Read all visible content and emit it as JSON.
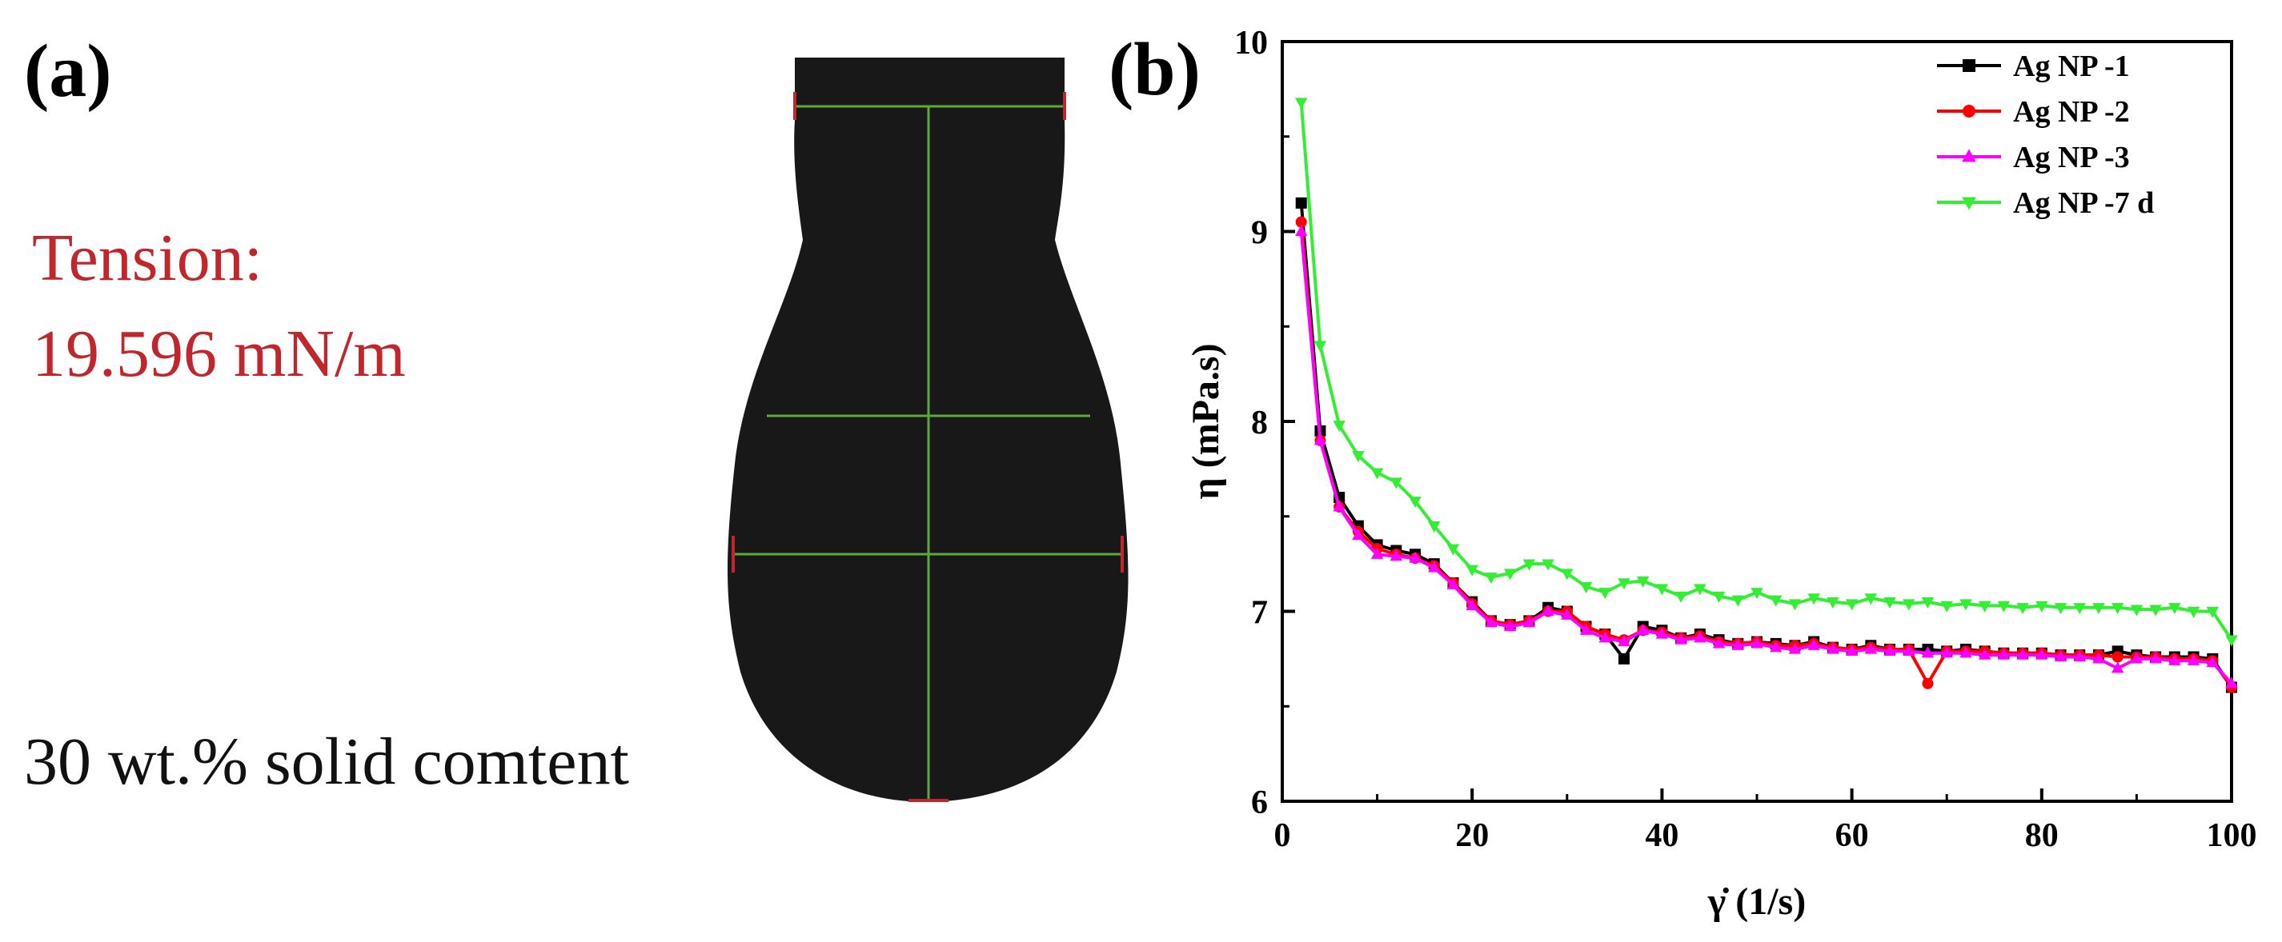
{
  "panel_a": {
    "label": "(a)",
    "tension_label": "Tension:",
    "tension_value": "19.596 mN/m",
    "caption": "30 wt.% solid comtent",
    "colors": {
      "text_red": "#c0272d",
      "droplet": "#181818",
      "guide": "#5fa83c"
    }
  },
  "panel_b": {
    "label": "(b)"
  },
  "chart_data": {
    "type": "line",
    "xlabel": "γ̇ (1/s)",
    "ylabel": "η (mPa.s)",
    "xlim": [
      0,
      100
    ],
    "ylim": [
      6,
      10
    ],
    "x_ticks": [
      0,
      20,
      40,
      60,
      80,
      100
    ],
    "y_ticks": [
      6,
      7,
      8,
      9,
      10
    ],
    "grid": false,
    "legend_position": "top-right",
    "series": [
      {
        "name": "Ag NP -1",
        "color": "#000000",
        "marker": "square",
        "points": [
          [
            2,
            9.15
          ],
          [
            4,
            7.95
          ],
          [
            6,
            7.6
          ],
          [
            8,
            7.45
          ],
          [
            10,
            7.35
          ],
          [
            12,
            7.32
          ],
          [
            14,
            7.3
          ],
          [
            16,
            7.25
          ],
          [
            18,
            7.15
          ],
          [
            20,
            7.05
          ],
          [
            22,
            6.95
          ],
          [
            24,
            6.93
          ],
          [
            26,
            6.95
          ],
          [
            28,
            7.02
          ],
          [
            30,
            7.0
          ],
          [
            32,
            6.92
          ],
          [
            34,
            6.88
          ],
          [
            36,
            6.75
          ],
          [
            38,
            6.92
          ],
          [
            40,
            6.9
          ],
          [
            42,
            6.86
          ],
          [
            44,
            6.88
          ],
          [
            46,
            6.85
          ],
          [
            48,
            6.83
          ],
          [
            50,
            6.84
          ],
          [
            52,
            6.83
          ],
          [
            54,
            6.82
          ],
          [
            56,
            6.84
          ],
          [
            58,
            6.81
          ],
          [
            60,
            6.8
          ],
          [
            62,
            6.82
          ],
          [
            64,
            6.8
          ],
          [
            66,
            6.8
          ],
          [
            68,
            6.8
          ],
          [
            70,
            6.79
          ],
          [
            72,
            6.8
          ],
          [
            74,
            6.79
          ],
          [
            76,
            6.78
          ],
          [
            78,
            6.78
          ],
          [
            80,
            6.78
          ],
          [
            82,
            6.77
          ],
          [
            84,
            6.77
          ],
          [
            86,
            6.77
          ],
          [
            88,
            6.79
          ],
          [
            90,
            6.77
          ],
          [
            92,
            6.76
          ],
          [
            94,
            6.76
          ],
          [
            96,
            6.76
          ],
          [
            98,
            6.75
          ],
          [
            100,
            6.6
          ]
        ]
      },
      {
        "name": "Ag NP -2",
        "color": "#ff0000",
        "marker": "circle",
        "points": [
          [
            2,
            9.05
          ],
          [
            4,
            7.9
          ],
          [
            6,
            7.55
          ],
          [
            8,
            7.42
          ],
          [
            10,
            7.33
          ],
          [
            12,
            7.3
          ],
          [
            14,
            7.28
          ],
          [
            16,
            7.24
          ],
          [
            18,
            7.15
          ],
          [
            20,
            7.04
          ],
          [
            22,
            6.95
          ],
          [
            24,
            6.93
          ],
          [
            26,
            6.95
          ],
          [
            28,
            7.0
          ],
          [
            30,
            7.0
          ],
          [
            32,
            6.92
          ],
          [
            34,
            6.88
          ],
          [
            36,
            6.85
          ],
          [
            38,
            6.9
          ],
          [
            40,
            6.89
          ],
          [
            42,
            6.86
          ],
          [
            44,
            6.87
          ],
          [
            46,
            6.84
          ],
          [
            48,
            6.83
          ],
          [
            50,
            6.84
          ],
          [
            52,
            6.82
          ],
          [
            54,
            6.82
          ],
          [
            56,
            6.83
          ],
          [
            58,
            6.81
          ],
          [
            60,
            6.8
          ],
          [
            62,
            6.81
          ],
          [
            64,
            6.8
          ],
          [
            66,
            6.8
          ],
          [
            68,
            6.62
          ],
          [
            70,
            6.79
          ],
          [
            72,
            6.79
          ],
          [
            74,
            6.79
          ],
          [
            76,
            6.78
          ],
          [
            78,
            6.78
          ],
          [
            80,
            6.78
          ],
          [
            82,
            6.77
          ],
          [
            84,
            6.77
          ],
          [
            86,
            6.77
          ],
          [
            88,
            6.76
          ],
          [
            90,
            6.76
          ],
          [
            92,
            6.76
          ],
          [
            94,
            6.75
          ],
          [
            96,
            6.75
          ],
          [
            98,
            6.74
          ],
          [
            100,
            6.6
          ]
        ]
      },
      {
        "name": "Ag NP -3",
        "color": "#ff00ff",
        "marker": "triangle-up",
        "points": [
          [
            2,
            9.0
          ],
          [
            4,
            7.9
          ],
          [
            6,
            7.55
          ],
          [
            8,
            7.4
          ],
          [
            10,
            7.3
          ],
          [
            12,
            7.29
          ],
          [
            14,
            7.28
          ],
          [
            16,
            7.23
          ],
          [
            18,
            7.14
          ],
          [
            20,
            7.03
          ],
          [
            22,
            6.94
          ],
          [
            24,
            6.92
          ],
          [
            26,
            6.94
          ],
          [
            28,
            7.0
          ],
          [
            30,
            6.98
          ],
          [
            32,
            6.9
          ],
          [
            34,
            6.86
          ],
          [
            36,
            6.84
          ],
          [
            38,
            6.9
          ],
          [
            40,
            6.88
          ],
          [
            42,
            6.85
          ],
          [
            44,
            6.86
          ],
          [
            46,
            6.83
          ],
          [
            48,
            6.82
          ],
          [
            50,
            6.83
          ],
          [
            52,
            6.81
          ],
          [
            54,
            6.8
          ],
          [
            56,
            6.82
          ],
          [
            58,
            6.8
          ],
          [
            60,
            6.79
          ],
          [
            62,
            6.8
          ],
          [
            64,
            6.79
          ],
          [
            66,
            6.79
          ],
          [
            68,
            6.78
          ],
          [
            70,
            6.78
          ],
          [
            72,
            6.78
          ],
          [
            74,
            6.77
          ],
          [
            76,
            6.77
          ],
          [
            78,
            6.77
          ],
          [
            80,
            6.77
          ],
          [
            82,
            6.76
          ],
          [
            84,
            6.76
          ],
          [
            86,
            6.75
          ],
          [
            88,
            6.7
          ],
          [
            90,
            6.75
          ],
          [
            92,
            6.75
          ],
          [
            94,
            6.74
          ],
          [
            96,
            6.74
          ],
          [
            98,
            6.73
          ],
          [
            100,
            6.62
          ]
        ]
      },
      {
        "name": "Ag NP -7 d",
        "color": "#33ee33",
        "marker": "triangle-down",
        "points": [
          [
            2,
            9.68
          ],
          [
            4,
            8.4
          ],
          [
            6,
            7.98
          ],
          [
            8,
            7.82
          ],
          [
            10,
            7.73
          ],
          [
            12,
            7.68
          ],
          [
            14,
            7.58
          ],
          [
            16,
            7.45
          ],
          [
            18,
            7.33
          ],
          [
            20,
            7.22
          ],
          [
            22,
            7.18
          ],
          [
            24,
            7.2
          ],
          [
            26,
            7.25
          ],
          [
            28,
            7.25
          ],
          [
            30,
            7.2
          ],
          [
            32,
            7.13
          ],
          [
            34,
            7.1
          ],
          [
            36,
            7.15
          ],
          [
            38,
            7.16
          ],
          [
            40,
            7.12
          ],
          [
            42,
            7.08
          ],
          [
            44,
            7.12
          ],
          [
            46,
            7.08
          ],
          [
            48,
            7.06
          ],
          [
            50,
            7.1
          ],
          [
            52,
            7.06
          ],
          [
            54,
            7.04
          ],
          [
            56,
            7.07
          ],
          [
            58,
            7.05
          ],
          [
            60,
            7.04
          ],
          [
            62,
            7.07
          ],
          [
            64,
            7.05
          ],
          [
            66,
            7.04
          ],
          [
            68,
            7.05
          ],
          [
            70,
            7.03
          ],
          [
            72,
            7.04
          ],
          [
            74,
            7.03
          ],
          [
            76,
            7.03
          ],
          [
            78,
            7.02
          ],
          [
            80,
            7.03
          ],
          [
            82,
            7.02
          ],
          [
            84,
            7.02
          ],
          [
            86,
            7.02
          ],
          [
            88,
            7.02
          ],
          [
            90,
            7.01
          ],
          [
            92,
            7.01
          ],
          [
            94,
            7.02
          ],
          [
            96,
            7.0
          ],
          [
            98,
            7.0
          ],
          [
            100,
            6.85
          ]
        ]
      }
    ]
  }
}
